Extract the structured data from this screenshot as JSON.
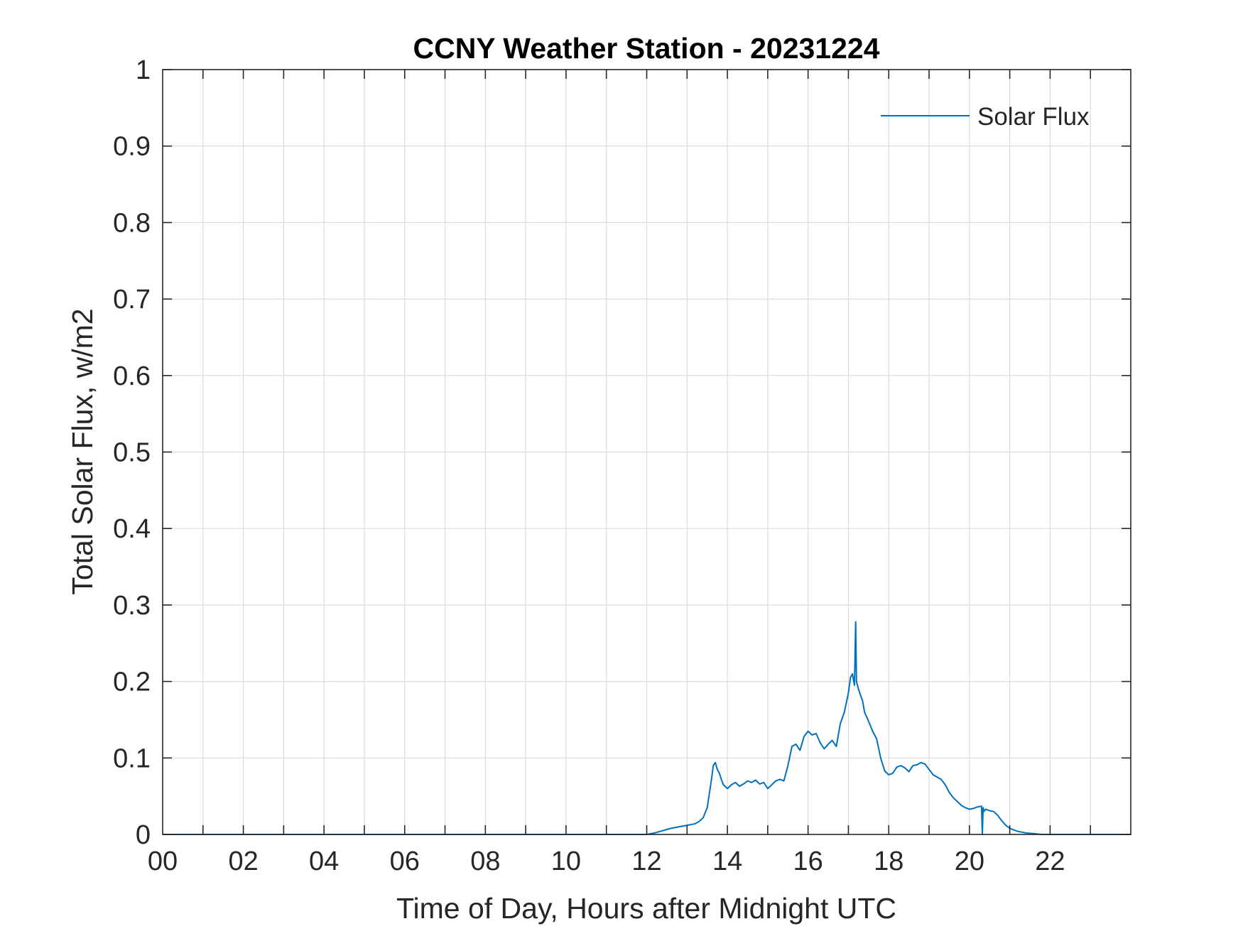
{
  "chart_data": {
    "type": "line",
    "title": "CCNY Weather Station - 20231224",
    "xlabel": "Time of Day, Hours after Midnight UTC",
    "ylabel": "Total Solar Flux, w/m2",
    "xlim": [
      0,
      24
    ],
    "ylim": [
      0,
      1
    ],
    "x_ticks": [
      0,
      2,
      4,
      6,
      8,
      10,
      12,
      14,
      16,
      18,
      20,
      22
    ],
    "x_tick_labels": [
      "00",
      "02",
      "04",
      "06",
      "08",
      "10",
      "12",
      "14",
      "16",
      "18",
      "20",
      "22"
    ],
    "y_ticks": [
      0,
      0.1,
      0.2,
      0.3,
      0.4,
      0.5,
      0.6,
      0.7,
      0.8,
      0.9,
      1
    ],
    "y_tick_labels": [
      "0",
      "0.1",
      "0.2",
      "0.3",
      "0.4",
      "0.5",
      "0.6",
      "0.7",
      "0.8",
      "0.9",
      "1"
    ],
    "grid": true,
    "legend": {
      "position": "top-right",
      "entries": [
        "Solar Flux"
      ]
    },
    "colors": {
      "series": "#0072BD",
      "axes": "#262626",
      "grid": "#dcdcdc"
    },
    "series": [
      {
        "name": "Solar Flux",
        "x": [
          0,
          12.0,
          12.2,
          12.4,
          12.6,
          12.8,
          13.0,
          13.2,
          13.3,
          13.4,
          13.5,
          13.6,
          13.65,
          13.7,
          13.75,
          13.8,
          13.85,
          13.9,
          14.0,
          14.1,
          14.2,
          14.3,
          14.4,
          14.5,
          14.6,
          14.7,
          14.8,
          14.9,
          15.0,
          15.1,
          15.2,
          15.3,
          15.4,
          15.5,
          15.6,
          15.7,
          15.8,
          15.9,
          16.0,
          16.1,
          16.2,
          16.3,
          16.4,
          16.5,
          16.6,
          16.7,
          16.8,
          16.9,
          17.0,
          17.05,
          17.1,
          17.15,
          17.18,
          17.2,
          17.25,
          17.3,
          17.35,
          17.4,
          17.5,
          17.6,
          17.7,
          17.8,
          17.9,
          18.0,
          18.1,
          18.2,
          18.3,
          18.4,
          18.5,
          18.6,
          18.7,
          18.8,
          18.9,
          19.0,
          19.1,
          19.2,
          19.3,
          19.4,
          19.5,
          19.6,
          19.7,
          19.8,
          19.9,
          20.0,
          20.1,
          20.2,
          20.3,
          20.32,
          20.34,
          20.36,
          20.4,
          20.5,
          20.6,
          20.7,
          20.8,
          20.9,
          21.0,
          21.2,
          21.4,
          21.6,
          21.8,
          22.0,
          24.0
        ],
        "values": [
          0,
          0,
          0.002,
          0.005,
          0.008,
          0.01,
          0.012,
          0.014,
          0.017,
          0.022,
          0.035,
          0.07,
          0.09,
          0.094,
          0.085,
          0.08,
          0.072,
          0.065,
          0.06,
          0.065,
          0.068,
          0.063,
          0.066,
          0.07,
          0.068,
          0.071,
          0.066,
          0.068,
          0.06,
          0.065,
          0.07,
          0.072,
          0.07,
          0.09,
          0.115,
          0.118,
          0.11,
          0.128,
          0.135,
          0.13,
          0.132,
          0.12,
          0.112,
          0.118,
          0.123,
          0.115,
          0.145,
          0.16,
          0.185,
          0.205,
          0.21,
          0.195,
          0.278,
          0.2,
          0.19,
          0.182,
          0.175,
          0.16,
          0.148,
          0.135,
          0.125,
          0.1,
          0.083,
          0.078,
          0.08,
          0.088,
          0.09,
          0.087,
          0.082,
          0.09,
          0.091,
          0.094,
          0.092,
          0.085,
          0.078,
          0.075,
          0.072,
          0.065,
          0.055,
          0.048,
          0.043,
          0.038,
          0.035,
          0.033,
          0.034,
          0.036,
          0.037,
          0,
          0.035,
          0.03,
          0.033,
          0.031,
          0.03,
          0.025,
          0.018,
          0.012,
          0.008,
          0.004,
          0.002,
          0.001,
          0,
          0,
          0
        ]
      }
    ]
  }
}
